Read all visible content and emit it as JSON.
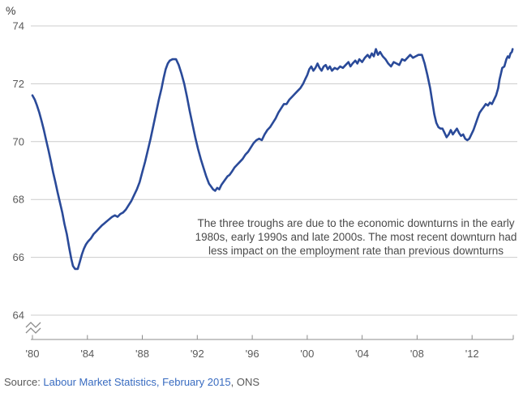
{
  "header": {
    "unit_label": "%"
  },
  "annotation": {
    "lines": [
      "The three troughs are due to the economic downturns in the early",
      "1980s, early 1990s and late 2000s. The most recent downturn had",
      "less impact on the employment rate than previous downturns"
    ]
  },
  "source": {
    "prefix": "Source: ",
    "link_text": "Labour Market Statistics, February 2015",
    "suffix": ", ONS"
  },
  "colors": {
    "line": "#2a4a99",
    "grid": "#cccccc",
    "axis": "#8c8c8c",
    "tick_text": "#595959",
    "annotation_text": "#4a4a4a",
    "link": "#386bc0",
    "source_text": "#595959"
  },
  "chart_data": {
    "type": "line",
    "title": "",
    "ylabel": "%",
    "xlabel": "",
    "xlim": [
      1980,
      2015
    ],
    "ylim": [
      64,
      74
    ],
    "grid": "horizontal",
    "legend_position": "none",
    "axis_break_below_y": 64,
    "yticks": [
      64,
      66,
      68,
      70,
      72,
      74
    ],
    "xticks": [
      1980,
      1984,
      1988,
      1992,
      1996,
      2000,
      2004,
      2008,
      2012
    ],
    "xtick_labels": [
      "'80",
      "'84",
      "'88",
      "'92",
      "'96",
      "'00",
      "'04",
      "'08",
      "'12"
    ],
    "series": [
      {
        "name": "employment_rate",
        "points": [
          [
            1980.0,
            71.6
          ],
          [
            1980.17,
            71.45
          ],
          [
            1980.33,
            71.25
          ],
          [
            1980.5,
            71.0
          ],
          [
            1980.67,
            70.7
          ],
          [
            1980.83,
            70.4
          ],
          [
            1981.0,
            70.05
          ],
          [
            1981.17,
            69.7
          ],
          [
            1981.33,
            69.35
          ],
          [
            1981.5,
            68.95
          ],
          [
            1981.67,
            68.6
          ],
          [
            1981.83,
            68.25
          ],
          [
            1982.0,
            67.9
          ],
          [
            1982.17,
            67.55
          ],
          [
            1982.33,
            67.15
          ],
          [
            1982.5,
            66.8
          ],
          [
            1982.67,
            66.35
          ],
          [
            1982.83,
            65.95
          ],
          [
            1982.95,
            65.7
          ],
          [
            1983.1,
            65.6
          ],
          [
            1983.3,
            65.6
          ],
          [
            1983.45,
            65.85
          ],
          [
            1983.6,
            66.1
          ],
          [
            1983.75,
            66.3
          ],
          [
            1983.9,
            66.45
          ],
          [
            1984.05,
            66.55
          ],
          [
            1984.25,
            66.65
          ],
          [
            1984.45,
            66.8
          ],
          [
            1984.65,
            66.9
          ],
          [
            1984.85,
            67.0
          ],
          [
            1985.05,
            67.1
          ],
          [
            1985.3,
            67.2
          ],
          [
            1985.55,
            67.3
          ],
          [
            1985.8,
            67.4
          ],
          [
            1986.0,
            67.45
          ],
          [
            1986.2,
            67.4
          ],
          [
            1986.4,
            67.5
          ],
          [
            1986.6,
            67.55
          ],
          [
            1986.8,
            67.65
          ],
          [
            1987.0,
            67.8
          ],
          [
            1987.2,
            67.95
          ],
          [
            1987.4,
            68.15
          ],
          [
            1987.6,
            68.35
          ],
          [
            1987.8,
            68.6
          ],
          [
            1988.0,
            68.95
          ],
          [
            1988.2,
            69.3
          ],
          [
            1988.4,
            69.7
          ],
          [
            1988.6,
            70.1
          ],
          [
            1988.8,
            70.55
          ],
          [
            1989.0,
            71.0
          ],
          [
            1989.2,
            71.45
          ],
          [
            1989.4,
            71.85
          ],
          [
            1989.55,
            72.2
          ],
          [
            1989.7,
            72.5
          ],
          [
            1989.85,
            72.7
          ],
          [
            1990.0,
            72.8
          ],
          [
            1990.2,
            72.85
          ],
          [
            1990.45,
            72.85
          ],
          [
            1990.65,
            72.65
          ],
          [
            1990.85,
            72.35
          ],
          [
            1991.05,
            72.0
          ],
          [
            1991.25,
            71.55
          ],
          [
            1991.45,
            71.05
          ],
          [
            1991.65,
            70.6
          ],
          [
            1991.85,
            70.15
          ],
          [
            1992.05,
            69.75
          ],
          [
            1992.25,
            69.4
          ],
          [
            1992.45,
            69.1
          ],
          [
            1992.65,
            68.8
          ],
          [
            1992.85,
            68.55
          ],
          [
            1993.0,
            68.45
          ],
          [
            1993.15,
            68.35
          ],
          [
            1993.3,
            68.3
          ],
          [
            1993.45,
            68.4
          ],
          [
            1993.6,
            68.35
          ],
          [
            1993.75,
            68.5
          ],
          [
            1993.9,
            68.6
          ],
          [
            1994.05,
            68.7
          ],
          [
            1994.2,
            68.8
          ],
          [
            1994.35,
            68.85
          ],
          [
            1994.5,
            68.95
          ],
          [
            1994.7,
            69.1
          ],
          [
            1994.9,
            69.2
          ],
          [
            1995.1,
            69.3
          ],
          [
            1995.3,
            69.4
          ],
          [
            1995.5,
            69.55
          ],
          [
            1995.7,
            69.65
          ],
          [
            1995.9,
            69.8
          ],
          [
            1996.1,
            69.95
          ],
          [
            1996.3,
            70.05
          ],
          [
            1996.5,
            70.1
          ],
          [
            1996.7,
            70.05
          ],
          [
            1996.9,
            70.25
          ],
          [
            1997.1,
            70.4
          ],
          [
            1997.3,
            70.5
          ],
          [
            1997.5,
            70.65
          ],
          [
            1997.7,
            70.8
          ],
          [
            1997.9,
            71.0
          ],
          [
            1998.1,
            71.15
          ],
          [
            1998.3,
            71.3
          ],
          [
            1998.5,
            71.3
          ],
          [
            1998.7,
            71.45
          ],
          [
            1998.9,
            71.55
          ],
          [
            1999.1,
            71.65
          ],
          [
            1999.3,
            71.75
          ],
          [
            1999.5,
            71.85
          ],
          [
            1999.7,
            72.0
          ],
          [
            1999.85,
            72.15
          ],
          [
            2000.0,
            72.3
          ],
          [
            2000.15,
            72.5
          ],
          [
            2000.3,
            72.6
          ],
          [
            2000.45,
            72.45
          ],
          [
            2000.6,
            72.55
          ],
          [
            2000.75,
            72.7
          ],
          [
            2000.9,
            72.55
          ],
          [
            2001.05,
            72.45
          ],
          [
            2001.2,
            72.6
          ],
          [
            2001.35,
            72.65
          ],
          [
            2001.5,
            72.5
          ],
          [
            2001.65,
            72.6
          ],
          [
            2001.8,
            72.45
          ],
          [
            2002.0,
            72.55
          ],
          [
            2002.2,
            72.5
          ],
          [
            2002.4,
            72.6
          ],
          [
            2002.6,
            72.55
          ],
          [
            2002.8,
            72.65
          ],
          [
            2003.0,
            72.75
          ],
          [
            2003.15,
            72.6
          ],
          [
            2003.3,
            72.7
          ],
          [
            2003.5,
            72.8
          ],
          [
            2003.65,
            72.7
          ],
          [
            2003.8,
            72.85
          ],
          [
            2004.0,
            72.75
          ],
          [
            2004.2,
            72.9
          ],
          [
            2004.4,
            73.0
          ],
          [
            2004.55,
            72.9
          ],
          [
            2004.7,
            73.05
          ],
          [
            2004.85,
            72.95
          ],
          [
            2005.0,
            73.2
          ],
          [
            2005.15,
            73.0
          ],
          [
            2005.3,
            73.1
          ],
          [
            2005.5,
            72.95
          ],
          [
            2005.7,
            72.85
          ],
          [
            2005.9,
            72.7
          ],
          [
            2006.1,
            72.6
          ],
          [
            2006.3,
            72.75
          ],
          [
            2006.5,
            72.7
          ],
          [
            2006.7,
            72.65
          ],
          [
            2006.9,
            72.85
          ],
          [
            2007.1,
            72.8
          ],
          [
            2007.3,
            72.9
          ],
          [
            2007.5,
            73.0
          ],
          [
            2007.7,
            72.9
          ],
          [
            2007.9,
            72.95
          ],
          [
            2008.1,
            73.0
          ],
          [
            2008.35,
            73.0
          ],
          [
            2008.55,
            72.7
          ],
          [
            2008.75,
            72.3
          ],
          [
            2008.95,
            71.85
          ],
          [
            2009.1,
            71.4
          ],
          [
            2009.25,
            70.95
          ],
          [
            2009.4,
            70.65
          ],
          [
            2009.55,
            70.5
          ],
          [
            2009.7,
            70.45
          ],
          [
            2009.85,
            70.45
          ],
          [
            2010.0,
            70.3
          ],
          [
            2010.15,
            70.15
          ],
          [
            2010.3,
            70.25
          ],
          [
            2010.45,
            70.4
          ],
          [
            2010.6,
            70.25
          ],
          [
            2010.75,
            70.35
          ],
          [
            2010.9,
            70.45
          ],
          [
            2011.05,
            70.3
          ],
          [
            2011.2,
            70.2
          ],
          [
            2011.35,
            70.25
          ],
          [
            2011.5,
            70.1
          ],
          [
            2011.65,
            70.05
          ],
          [
            2011.8,
            70.1
          ],
          [
            2011.95,
            70.25
          ],
          [
            2012.1,
            70.4
          ],
          [
            2012.25,
            70.6
          ],
          [
            2012.4,
            70.8
          ],
          [
            2012.55,
            71.0
          ],
          [
            2012.7,
            71.1
          ],
          [
            2012.85,
            71.2
          ],
          [
            2013.0,
            71.3
          ],
          [
            2013.15,
            71.25
          ],
          [
            2013.3,
            71.35
          ],
          [
            2013.45,
            71.3
          ],
          [
            2013.6,
            71.45
          ],
          [
            2013.75,
            71.6
          ],
          [
            2013.9,
            71.85
          ],
          [
            2014.0,
            72.15
          ],
          [
            2014.1,
            72.35
          ],
          [
            2014.2,
            72.55
          ],
          [
            2014.35,
            72.6
          ],
          [
            2014.5,
            72.85
          ],
          [
            2014.6,
            72.95
          ],
          [
            2014.7,
            72.9
          ],
          [
            2014.8,
            73.05
          ],
          [
            2014.9,
            73.1
          ],
          [
            2014.95,
            73.2
          ]
        ]
      }
    ]
  }
}
